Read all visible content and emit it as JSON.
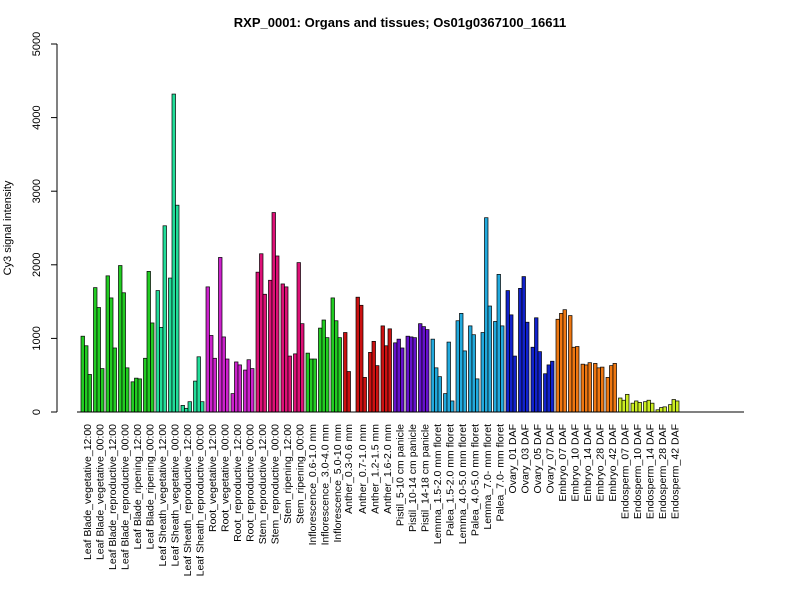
{
  "chart_data": {
    "type": "bar",
    "title": "RXP_0001: Organs and tissues; Os01g0367100_16611",
    "xlabel": "",
    "ylabel": "Cy3 signal intensity",
    "ylim": [
      0,
      5000
    ],
    "yticks": [
      "0",
      "1000",
      "2000",
      "3000",
      "4000",
      "5000"
    ],
    "grid": false,
    "legend": "none",
    "groups": [
      {
        "label": "Leaf Blade_vegetative_12:00",
        "color": "#22cc22",
        "values": [
          1030,
          900,
          510
        ]
      },
      {
        "label": "Leaf Blade_vegetative_00:00",
        "color": "#22cc22",
        "values": [
          1690,
          1420,
          590
        ]
      },
      {
        "label": "Leaf Blade_reproductive_12:00",
        "color": "#22cc22",
        "values": [
          1850,
          1550,
          870
        ]
      },
      {
        "label": "Leaf Blade_reproductive_00:00",
        "color": "#22cc22",
        "values": [
          1990,
          1620,
          600
        ]
      },
      {
        "label": "Leaf Blade_ripening_12:00",
        "color": "#22cc22",
        "values": [
          410,
          460,
          450
        ]
      },
      {
        "label": "Leaf Blade_ripening_00:00",
        "color": "#22cc22",
        "values": [
          730,
          1910,
          1210
        ]
      },
      {
        "label": "Leaf Sheath_vegetative_12:00",
        "color": "#22dd99",
        "values": [
          1650,
          1150,
          2530
        ]
      },
      {
        "label": "Leaf Sheath_vegetative_00:00",
        "color": "#22dd99",
        "values": [
          1820,
          4320,
          2810
        ]
      },
      {
        "label": "Leaf Sheath_reproductive_12:00",
        "color": "#22dd99",
        "values": [
          90,
          50,
          140
        ]
      },
      {
        "label": "Leaf Sheath_reproductive_00:00",
        "color": "#22dd99",
        "values": [
          420,
          750,
          140
        ]
      },
      {
        "label": "Root_vegetative_12:00",
        "color": "#cc22cc",
        "values": [
          1700,
          1040,
          730
        ]
      },
      {
        "label": "Root_vegetative_00:00",
        "color": "#cc22cc",
        "values": [
          2100,
          1020,
          720
        ]
      },
      {
        "label": "Root_reproductive_12:00",
        "color": "#cc22cc",
        "values": [
          250,
          680,
          640
        ]
      },
      {
        "label": "Root_reproductive_00:00",
        "color": "#cc22cc",
        "values": [
          570,
          710,
          590
        ]
      },
      {
        "label": "Stem_reproductive_12:00",
        "color": "#dd1177",
        "values": [
          1900,
          2150,
          1600
        ]
      },
      {
        "label": "Stem_reproductive_00:00",
        "color": "#dd1177",
        "values": [
          1790,
          2710,
          2120
        ]
      },
      {
        "label": "Stem_ripening_12:00",
        "color": "#dd1177",
        "values": [
          1740,
          1700,
          760
        ]
      },
      {
        "label": "Stem_ripening_00:00",
        "color": "#dd1177",
        "values": [
          790,
          2030,
          1200
        ]
      },
      {
        "label": "Inflorescence_0.6-1.0 mm",
        "color": "#22cc22",
        "values": [
          800,
          720,
          720
        ]
      },
      {
        "label": "Inflorescence_3.0-4.0 mm",
        "color": "#22cc22",
        "values": [
          1140,
          1250,
          1010
        ]
      },
      {
        "label": "Inflorescence_5.0-10 mm",
        "color": "#22cc22",
        "values": [
          1550,
          1240,
          1010
        ]
      },
      {
        "label": "Anther_0.3-0.6 mm",
        "color": "#cc1111",
        "values": [
          1080,
          550
        ]
      },
      {
        "label": "Anther_0.7-1.0 mm",
        "color": "#cc1111",
        "values": [
          1560,
          1450,
          470
        ]
      },
      {
        "label": "Anther_1.2-1.5 mm",
        "color": "#cc1111",
        "values": [
          810,
          960,
          630
        ]
      },
      {
        "label": "Anther_1.6-2.0 mm",
        "color": "#cc1111",
        "values": [
          1170,
          900,
          1130
        ]
      },
      {
        "label": "Pistil_5-10 cm panicle",
        "color": "#6611cc",
        "values": [
          940,
          990,
          870
        ]
      },
      {
        "label": "Pistil_10-14 cm panicle",
        "color": "#6611cc",
        "values": [
          1030,
          1020,
          1010
        ]
      },
      {
        "label": "Pistil_14-18 cm panicle",
        "color": "#6611cc",
        "values": [
          1200,
          1160,
          1120
        ]
      },
      {
        "label": "Lemma_1.5-2.0 mm floret",
        "color": "#22aadd",
        "values": [
          990,
          600,
          480
        ]
      },
      {
        "label": "Palea_1.5-2.0 mm floret",
        "color": "#22aadd",
        "values": [
          250,
          950,
          150
        ]
      },
      {
        "label": "Lemma_4.0-5.0 mm floret",
        "color": "#22aadd",
        "values": [
          1240,
          1340,
          830
        ]
      },
      {
        "label": "Palea_4.0-5.0 mm floret",
        "color": "#22aadd",
        "values": [
          1170,
          1050,
          450
        ]
      },
      {
        "label": "Lemma_7.0- mm floret",
        "color": "#22aadd",
        "values": [
          1080,
          2640,
          1440
        ]
      },
      {
        "label": "Palea_7.0- mm floret",
        "color": "#22aadd",
        "values": [
          1230,
          1870,
          1170
        ]
      },
      {
        "label": "Ovary_01 DAF",
        "color": "#1122cc",
        "values": [
          1650,
          1320,
          760
        ]
      },
      {
        "label": "Ovary_03 DAF",
        "color": "#1122cc",
        "values": [
          1680,
          1840,
          1220
        ]
      },
      {
        "label": "Ovary_05 DAF",
        "color": "#1122cc",
        "values": [
          880,
          1280,
          820
        ]
      },
      {
        "label": "Ovary_07 DAF",
        "color": "#1122cc",
        "values": [
          520,
          640,
          690
        ]
      },
      {
        "label": "Embryo_07 DAF",
        "color": "#ee7711",
        "values": [
          1260,
          1340,
          1390
        ]
      },
      {
        "label": "Embryo_10 DAF",
        "color": "#ee7711",
        "values": [
          1310,
          880,
          890
        ]
      },
      {
        "label": "Embryo_14 DAF",
        "color": "#ee7711",
        "values": [
          650,
          640,
          670
        ]
      },
      {
        "label": "Embryo_28 DAF",
        "color": "#ee7711",
        "values": [
          660,
          600,
          610
        ]
      },
      {
        "label": "Embryo_42 DAF",
        "color": "#ee7711",
        "values": [
          470,
          630,
          660
        ]
      },
      {
        "label": "Endosperm_07 DAF",
        "color": "#ccee22",
        "values": [
          190,
          160,
          240
        ]
      },
      {
        "label": "Endosperm_10 DAF",
        "color": "#ccee22",
        "values": [
          120,
          150,
          130
        ]
      },
      {
        "label": "Endosperm_14 DAF",
        "color": "#ccee22",
        "values": [
          140,
          160,
          120
        ]
      },
      {
        "label": "Endosperm_28 DAF",
        "color": "#ccee22",
        "values": [
          30,
          60,
          70
        ]
      },
      {
        "label": "Endosperm_42 DAF",
        "color": "#ccee22",
        "values": [
          100,
          170,
          150
        ]
      }
    ]
  }
}
